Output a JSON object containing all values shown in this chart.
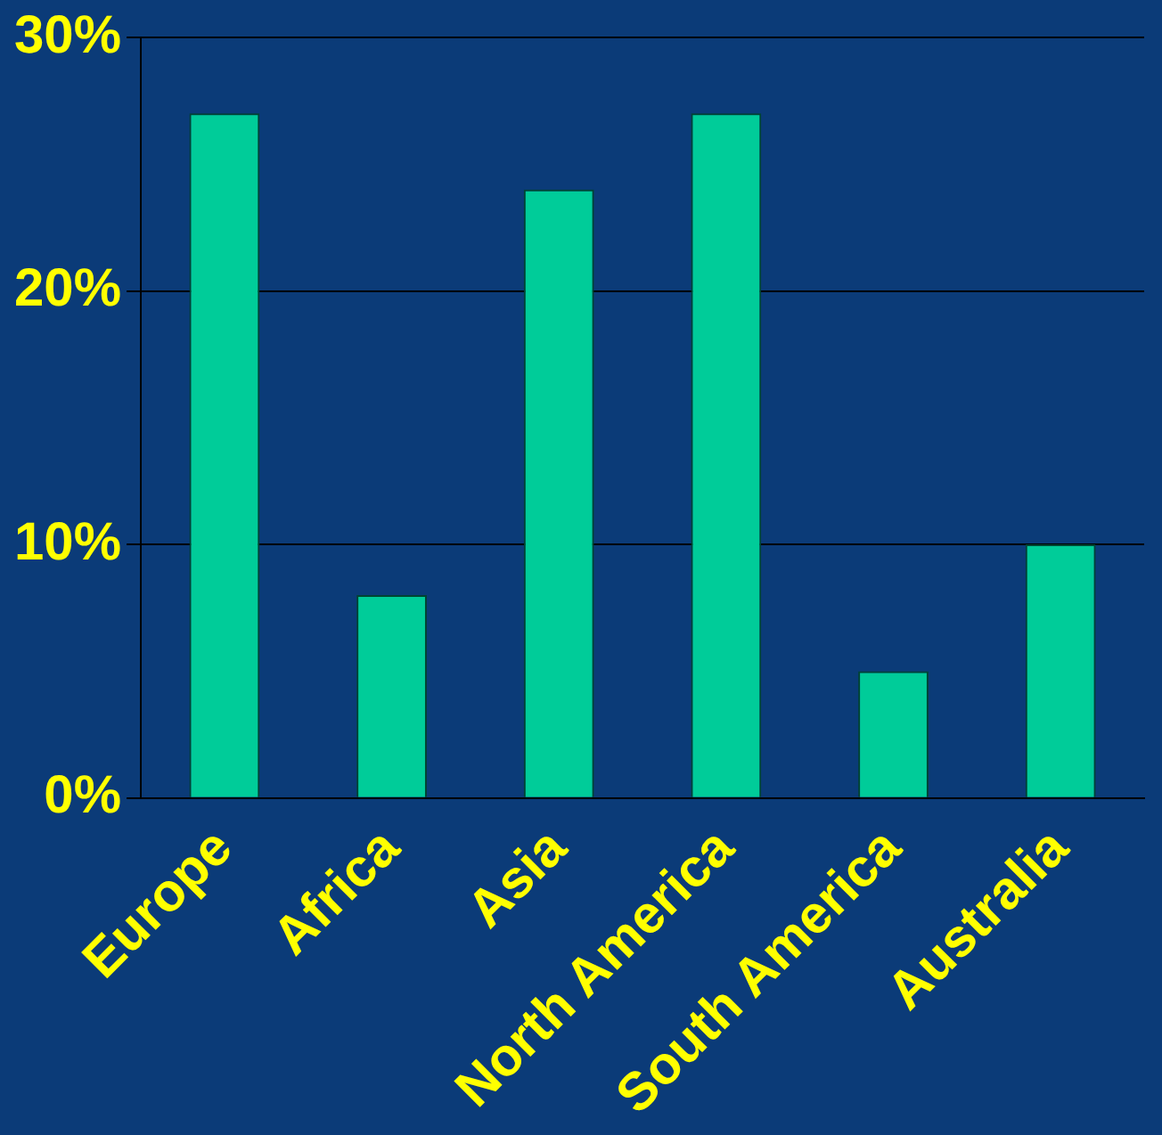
{
  "chart_data": {
    "type": "bar",
    "categories": [
      "Europe",
      "Africa",
      "Asia",
      "North America",
      "South America",
      "Australia"
    ],
    "values": [
      27,
      8,
      24,
      27,
      5,
      10
    ],
    "color": "#00cc99",
    "ylim": [
      0,
      30
    ],
    "yticks": [
      {
        "value": 0,
        "label": "0%"
      },
      {
        "value": 10,
        "label": "10%"
      },
      {
        "value": 20,
        "label": "20%"
      },
      {
        "value": 30,
        "label": "30%"
      }
    ],
    "grid": "y"
  }
}
